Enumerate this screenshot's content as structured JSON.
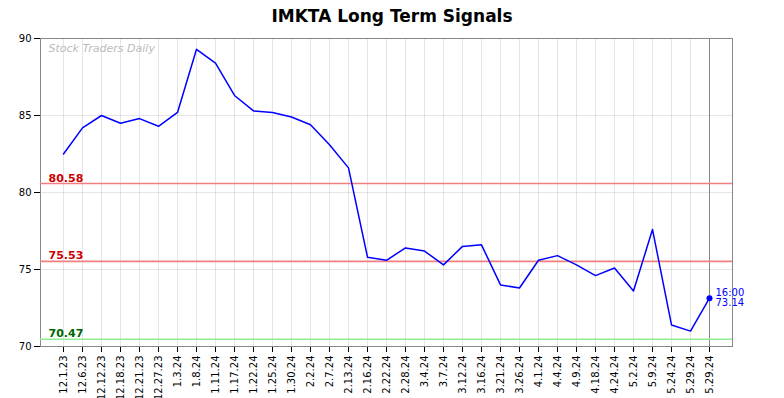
{
  "chart_data": {
    "type": "line",
    "title": "IMKTA Long Term Signals",
    "categories": [
      "12.1.23",
      "12.6.23",
      "12.12.23",
      "12.18.23",
      "12.21.23",
      "12.27.23",
      "1.3.24",
      "1.8.24",
      "1.11.24",
      "1.17.24",
      "1.22.24",
      "1.25.24",
      "1.30.24",
      "2.2.24",
      "2.7.24",
      "2.13.24",
      "2.16.24",
      "2.22.24",
      "2.28.24",
      "3.4.24",
      "3.7.24",
      "3.12.24",
      "3.16.24",
      "3.21.24",
      "3.26.24",
      "4.1.24",
      "4.4.24",
      "4.9.24",
      "4.18.24",
      "4.24.24",
      "5.2.24",
      "5.9.24",
      "5.24.24",
      "5.29.24",
      "5.29.24"
    ],
    "values": [
      82.5,
      84.2,
      85.0,
      84.5,
      84.8,
      84.3,
      85.2,
      89.3,
      88.4,
      86.3,
      85.3,
      85.2,
      84.9,
      84.4,
      83.1,
      81.6,
      75.8,
      75.6,
      76.4,
      76.2,
      75.3,
      76.5,
      76.6,
      74.0,
      73.8,
      75.6,
      75.9,
      75.3,
      74.6,
      75.1,
      73.6,
      77.6,
      71.4,
      71.0,
      73.14
    ],
    "color": "blue",
    "ylim": [
      70,
      90
    ],
    "yticks": [
      70,
      75,
      80,
      85,
      90
    ],
    "grid": true,
    "reference_lines": [
      {
        "value": 80.58,
        "color": "#f08080",
        "label": "80.58",
        "label_color": "#cc0000"
      },
      {
        "value": 75.53,
        "color": "#f08080",
        "label": "75.53",
        "label_color": "#cc0000"
      },
      {
        "value": 70.47,
        "color": "#90ee90",
        "label": "70.47",
        "label_color": "#006600"
      }
    ],
    "end_point": {
      "label": "16:00\n73.14",
      "color": "blue"
    },
    "watermark": {
      "text": "Stock Traders Daily",
      "color": "#bbbbbb"
    }
  }
}
